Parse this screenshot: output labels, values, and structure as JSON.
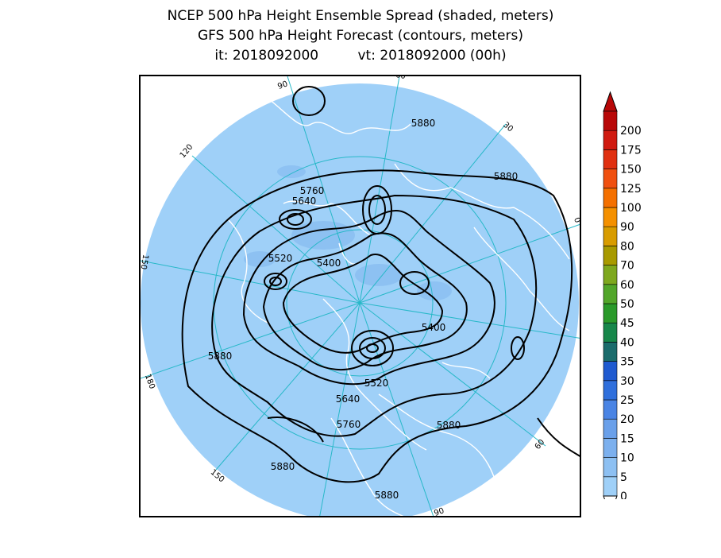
{
  "header": {
    "title_line1": "NCEP 500 hPa Height Ensemble Spread (shaded, meters)",
    "title_line2": "GFS 500 hPa Height Forecast (contours, meters)",
    "init_time": "it: 2018092000",
    "valid_time": "vt: 2018092000 (00h)"
  },
  "map": {
    "projection": "north-polar-stereographic",
    "background_spread_color": "#9fd0f8",
    "contour_color": "#000000",
    "coastline_color": "#ffffff",
    "grid_color": "#27b8c8",
    "longitude_labels": [
      "60",
      "30",
      "0",
      "30",
      "60",
      "90",
      "120",
      "150",
      "180",
      "150",
      "120",
      "90"
    ],
    "contour_labels": [
      {
        "value": "5880"
      },
      {
        "value": "5880"
      },
      {
        "value": "5760"
      },
      {
        "value": "5640"
      },
      {
        "value": "5520"
      },
      {
        "value": "5400"
      },
      {
        "value": "5400"
      },
      {
        "value": "5880"
      },
      {
        "value": "5520"
      },
      {
        "value": "5640"
      },
      {
        "value": "5760"
      },
      {
        "value": "5880"
      },
      {
        "value": "5880"
      },
      {
        "value": "5880"
      }
    ]
  },
  "colorbar": {
    "levels": [
      "0",
      "5",
      "10",
      "15",
      "20",
      "25",
      "30",
      "35",
      "40",
      "45",
      "50",
      "60",
      "70",
      "80",
      "90",
      "100",
      "125",
      "150",
      "175",
      "200"
    ],
    "colors": [
      "#9fd0f8",
      "#8dc0f2",
      "#7cb0ee",
      "#6aa0ea",
      "#4a84e4",
      "#2f6fdc",
      "#1f5ad0",
      "#1b6c6c",
      "#17874a",
      "#2a9a2a",
      "#52a62a",
      "#7ea81e",
      "#a89a00",
      "#d89c00",
      "#f49000",
      "#f47000",
      "#f05010",
      "#e03010",
      "#d01a10",
      "#b80808"
    ]
  }
}
